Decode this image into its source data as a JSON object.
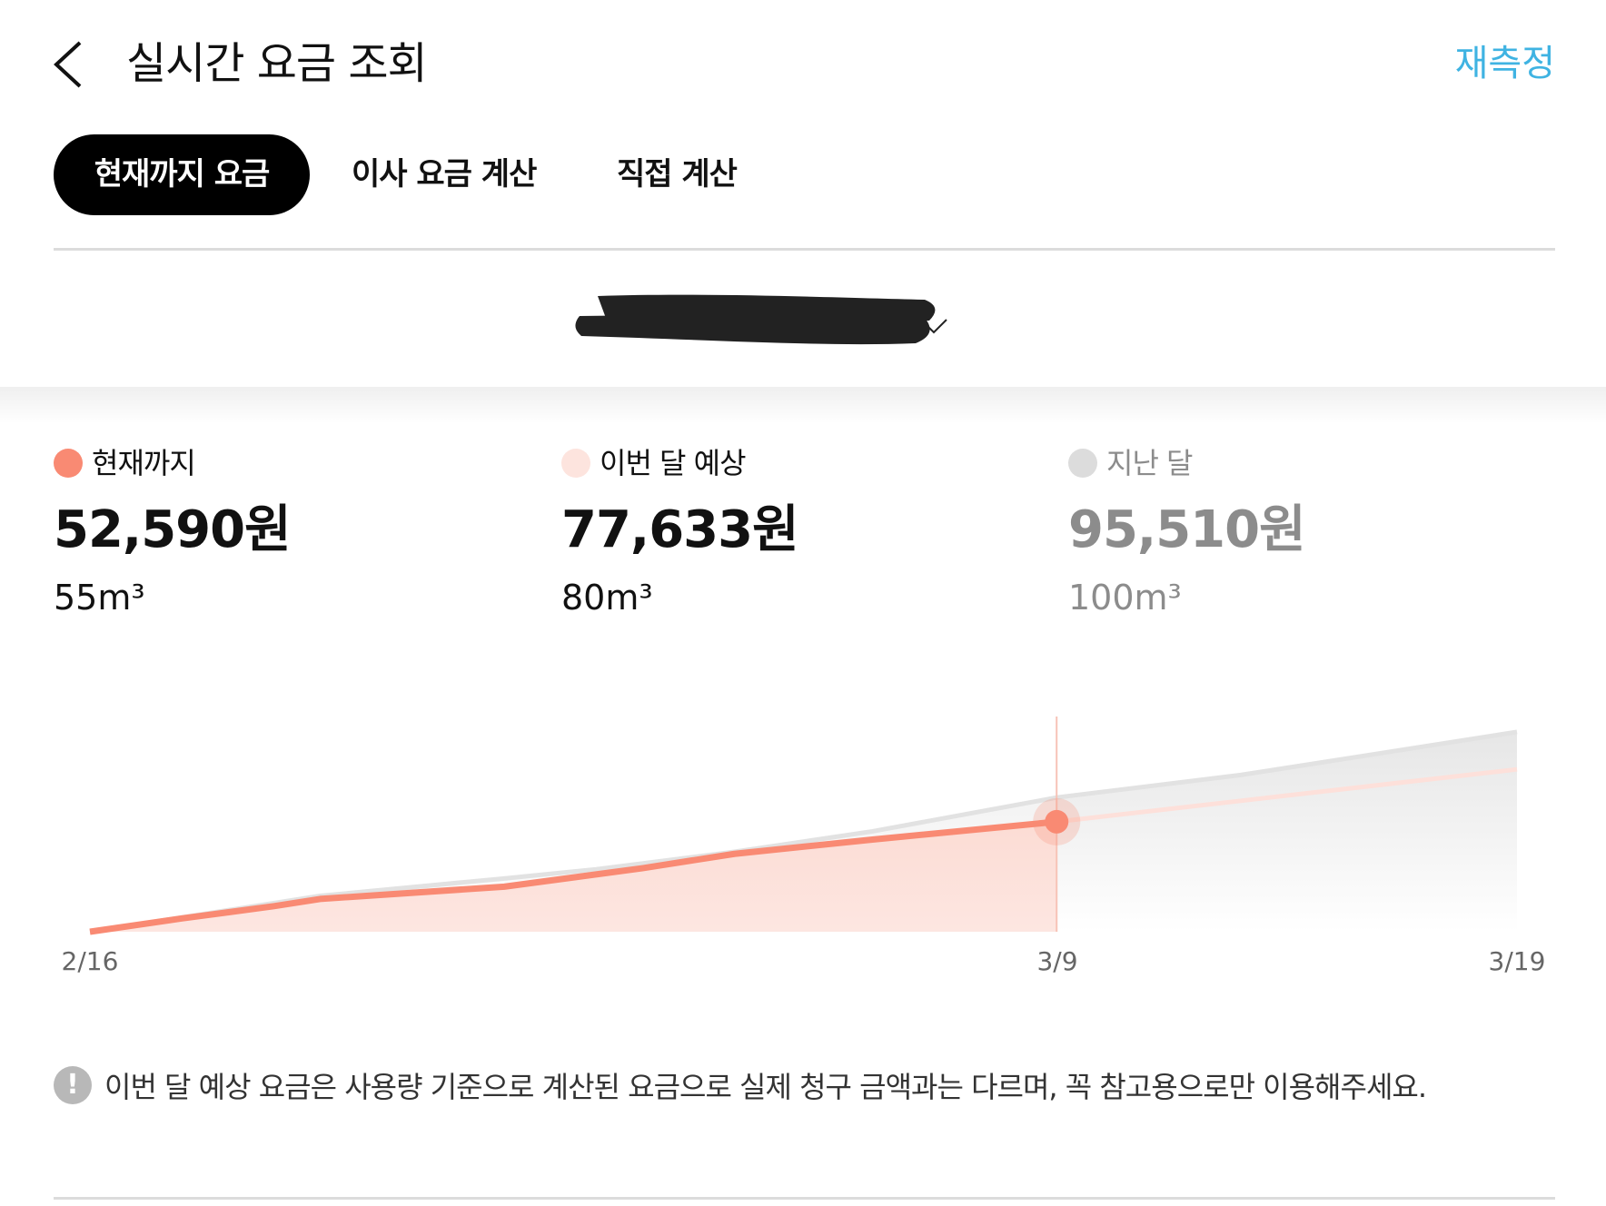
{
  "header": {
    "title": "실시간 요금 조회",
    "action_label": "재측정",
    "accent_color": "#3fb3e2"
  },
  "tabs": [
    {
      "label": "현재까지 요금",
      "selected": true
    },
    {
      "label": "이사 요금 계산",
      "selected": false
    },
    {
      "label": "직접 계산",
      "selected": false
    }
  ],
  "summary": [
    {
      "label": "현재까지",
      "amount": "52,590원",
      "usage": "55m³",
      "color": "#f98a73"
    },
    {
      "label": "이번 달 예상",
      "amount": "77,633원",
      "usage": "80m³",
      "color": "#fde4de"
    },
    {
      "label": "지난 달",
      "amount": "95,510원",
      "usage": "100m³",
      "color": "#dcdcdc"
    }
  ],
  "chart_data": {
    "type": "area",
    "x_ticks": [
      "2/16",
      "3/9",
      "3/19"
    ],
    "ylim": [
      0,
      95510
    ],
    "grid": false,
    "series": [
      {
        "name": "현재까지",
        "color": "#f98a73",
        "x": [
          "2/16",
          "2/18",
          "2/20",
          "2/21",
          "2/25",
          "2/28",
          "3/2",
          "3/5",
          "3/9"
        ],
        "values": [
          0,
          6367,
          12245,
          15673,
          21551,
          30368,
          37224,
          44082,
          52590
        ]
      },
      {
        "name": "이번 달 예상",
        "color": "#fde0da",
        "x": [
          "3/9",
          "3/13",
          "3/19"
        ],
        "values": [
          52590,
          62600,
          77633
        ]
      },
      {
        "name": "지난 달",
        "color": "#e2e2e2",
        "x": [
          "2/16",
          "2/21",
          "2/25",
          "2/27",
          "3/2",
          "3/5",
          "3/9",
          "3/13",
          "3/19"
        ],
        "values": [
          0,
          17143,
          25469,
          29878,
          38204,
          48000,
          64163,
          74939,
          95510
        ]
      }
    ],
    "marker": {
      "x": "3/9",
      "value": 52590
    }
  },
  "notice": {
    "icon": "exclamation-icon",
    "text": "이번 달 예상 요금은 사용량 기준으로 계산된 요금으로 실제 청구 금액과는 다르며, 꼭 참고용으로만 이용해주세요."
  }
}
